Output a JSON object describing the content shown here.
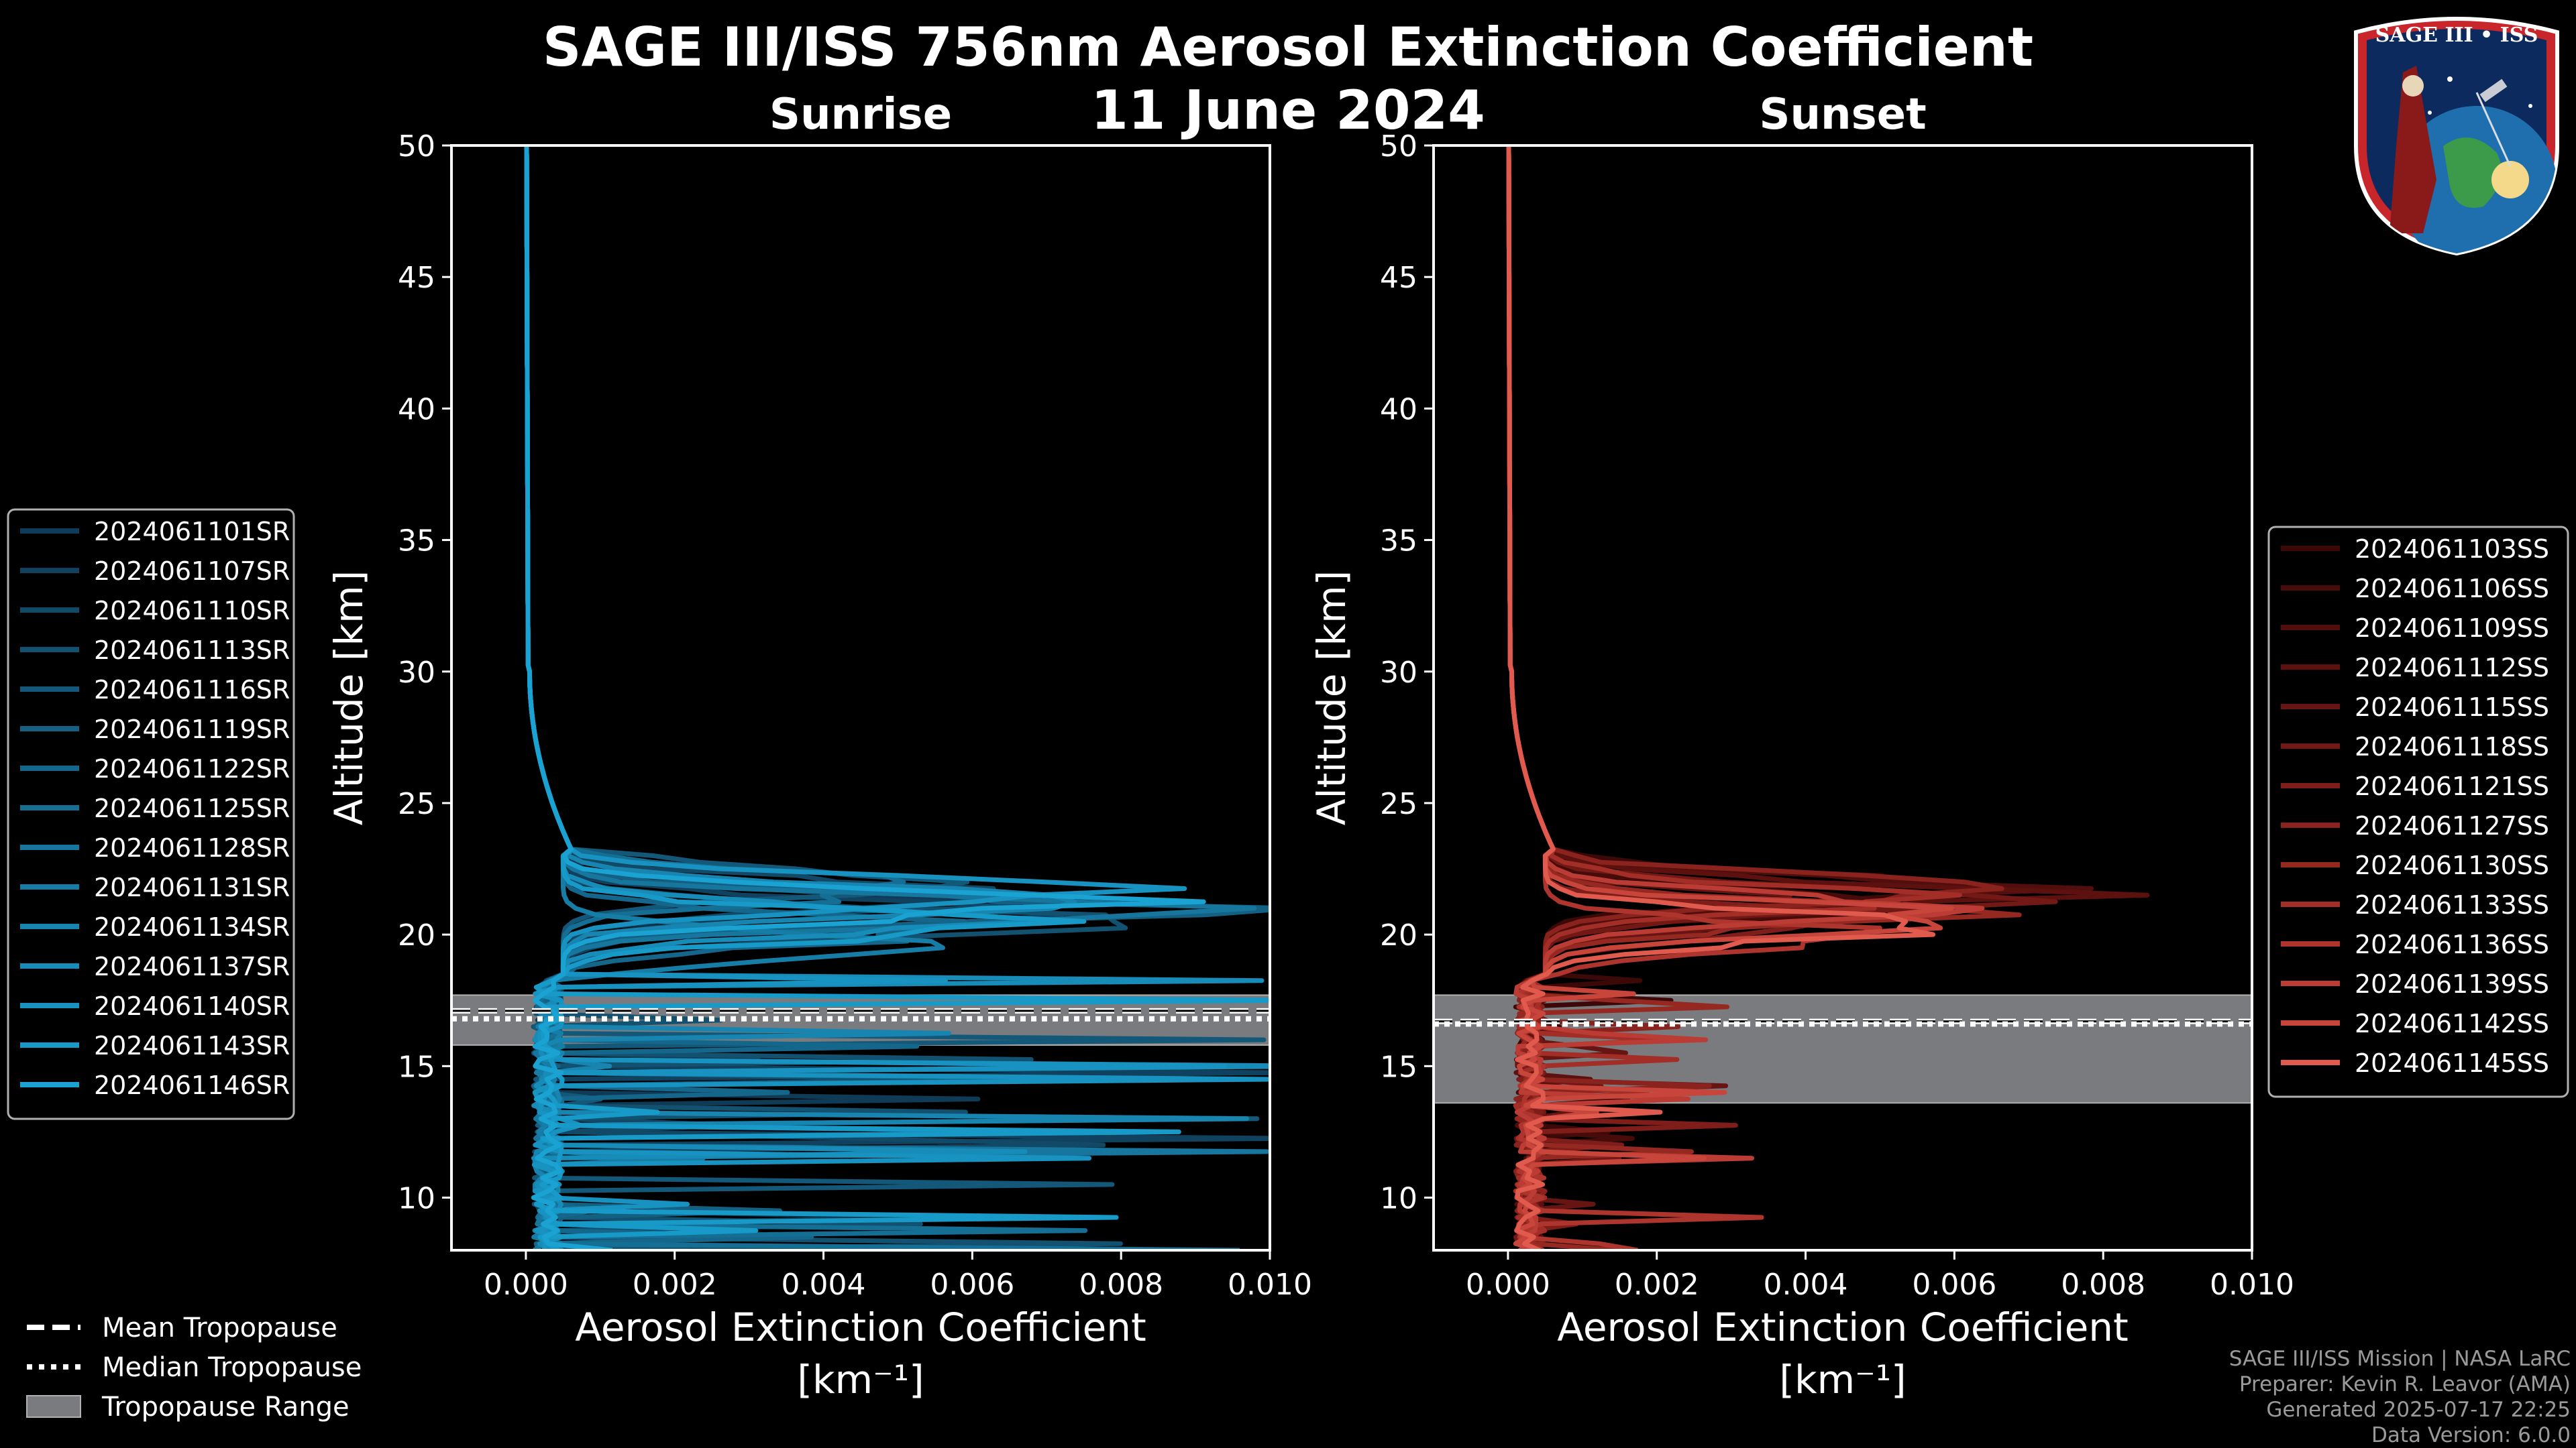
{
  "title_line1": "SAGE III/ISS 756nm Aerosol Extinction Coefficient",
  "title_line2": "11 June 2024",
  "logo_text": "SAGE III • ISS",
  "credits": [
    "SAGE III/ISS Mission | NASA LaRC",
    "Preparer: Kevin R. Leavor (AMA)",
    "Generated 2025-07-17 22:25",
    "Data Version: 6.0.0"
  ],
  "tropopause_legend": [
    {
      "label": "Mean Tropopause",
      "style": "dashed"
    },
    {
      "label": "Median Tropopause",
      "style": "dotted"
    },
    {
      "label": "Tropopause Range",
      "style": "patch"
    }
  ],
  "chart_data": [
    {
      "type": "line",
      "panel": "sunrise",
      "title": "Sunrise",
      "xlabel": "Aerosol Extinction Coefficient",
      "xlabel_unit": "[km⁻¹]",
      "ylabel": "Altitude [km]",
      "xlim": [
        -0.001,
        0.01
      ],
      "ylim": [
        8,
        50
      ],
      "x_ticks": [
        0.0,
        0.002,
        0.004,
        0.006,
        0.008,
        0.01
      ],
      "x_tick_labels": [
        "0.000",
        "0.002",
        "0.004",
        "0.006",
        "0.008",
        "0.010"
      ],
      "y_ticks": [
        10,
        15,
        20,
        25,
        30,
        35,
        40,
        45,
        50
      ],
      "y_tick_labels": [
        "10",
        "15",
        "20",
        "25",
        "30",
        "35",
        "40",
        "45",
        "50"
      ],
      "tropopause": {
        "mean": 17.1,
        "median": 16.8,
        "range": [
          15.8,
          17.7
        ]
      },
      "legend_position": "left",
      "series": [
        {
          "name": "2024061101SR",
          "color": "#0f3b57",
          "peak": 0.006,
          "peak_alt": 21.2
        },
        {
          "name": "2024061107SR",
          "color": "#10425f",
          "peak": 0.008,
          "peak_alt": 20.8
        },
        {
          "name": "2024061110SR",
          "color": "#114967",
          "peak": 0.0085,
          "peak_alt": 21.5
        },
        {
          "name": "2024061113SR",
          "color": "#125170",
          "peak": 0.009,
          "peak_alt": 20.5
        },
        {
          "name": "2024061116SR",
          "color": "#135879",
          "peak": 0.007,
          "peak_alt": 22.0
        },
        {
          "name": "2024061119SR",
          "color": "#136082",
          "peak": 0.01,
          "peak_alt": 21.0
        },
        {
          "name": "2024061122SR",
          "color": "#14678b",
          "peak": 0.0075,
          "peak_alt": 20.2
        },
        {
          "name": "2024061125SR",
          "color": "#156e94",
          "peak": 0.0065,
          "peak_alt": 21.8
        },
        {
          "name": "2024061128SR",
          "color": "#16769d",
          "peak": 0.0095,
          "peak_alt": 20.9
        },
        {
          "name": "2024061131SR",
          "color": "#167ea6",
          "peak": 0.006,
          "peak_alt": 19.6
        },
        {
          "name": "2024061134SR",
          "color": "#1785af",
          "peak": 0.0088,
          "peak_alt": 21.3
        },
        {
          "name": "2024061137SR",
          "color": "#178cb8",
          "peak": 0.0078,
          "peak_alt": 20.6
        },
        {
          "name": "2024061140SR",
          "color": "#1893c1",
          "peak": 0.01,
          "peak_alt": 21.6
        },
        {
          "name": "2024061143SR",
          "color": "#189ac9",
          "peak": 0.0082,
          "peak_alt": 20.4
        },
        {
          "name": "2024061146SR",
          "color": "#19a2d2",
          "peak": 0.0092,
          "peak_alt": 21.1
        }
      ]
    },
    {
      "type": "line",
      "panel": "sunset",
      "title": "Sunset",
      "xlabel": "Aerosol Extinction Coefficient",
      "xlabel_unit": "[km⁻¹]",
      "ylabel": "Altitude [km]",
      "xlim": [
        -0.001,
        0.01
      ],
      "ylim": [
        8,
        50
      ],
      "x_ticks": [
        0.0,
        0.002,
        0.004,
        0.006,
        0.008,
        0.01
      ],
      "x_tick_labels": [
        "0.000",
        "0.002",
        "0.004",
        "0.006",
        "0.008",
        "0.010"
      ],
      "y_ticks": [
        10,
        15,
        20,
        25,
        30,
        35,
        40,
        45,
        50
      ],
      "y_tick_labels": [
        "10",
        "15",
        "20",
        "25",
        "30",
        "35",
        "40",
        "45",
        "50"
      ],
      "tropopause": {
        "mean": 16.7,
        "median": 16.6,
        "range": [
          13.6,
          17.7
        ]
      },
      "legend_position": "right",
      "series": [
        {
          "name": "2024061103SS",
          "color": "#3d0908",
          "peak": 0.007,
          "peak_alt": 21.8
        },
        {
          "name": "2024061106SS",
          "color": "#470b0a",
          "peak": 0.006,
          "peak_alt": 21.2
        },
        {
          "name": "2024061109SS",
          "color": "#520e0c",
          "peak": 0.0078,
          "peak_alt": 21.6
        },
        {
          "name": "2024061112SS",
          "color": "#5c110f",
          "peak": 0.0081,
          "peak_alt": 21.5
        },
        {
          "name": "2024061115SS",
          "color": "#671512",
          "peak": 0.0065,
          "peak_alt": 20.9
        },
        {
          "name": "2024061118SS",
          "color": "#721915",
          "peak": 0.0072,
          "peak_alt": 21.3
        },
        {
          "name": "2024061121SS",
          "color": "#7e1d19",
          "peak": 0.0055,
          "peak_alt": 20.5
        },
        {
          "name": "2024061127SS",
          "color": "#8a221d",
          "peak": 0.0074,
          "peak_alt": 21.7
        },
        {
          "name": "2024061130SS",
          "color": "#962822",
          "peak": 0.0068,
          "peak_alt": 20.8
        },
        {
          "name": "2024061133SS",
          "color": "#a22e27",
          "peak": 0.006,
          "peak_alt": 21.4
        },
        {
          "name": "2024061136SS",
          "color": "#ae352d",
          "peak": 0.0058,
          "peak_alt": 19.9
        },
        {
          "name": "2024061139SS",
          "color": "#bb3c34",
          "peak": 0.007,
          "peak_alt": 21.0
        },
        {
          "name": "2024061142SS",
          "color": "#c8453b",
          "peak": 0.0073,
          "peak_alt": 20.6
        },
        {
          "name": "2024061145SS",
          "color": "#e05a4d",
          "peak": 0.0072,
          "peak_alt": 20.3
        }
      ]
    }
  ]
}
